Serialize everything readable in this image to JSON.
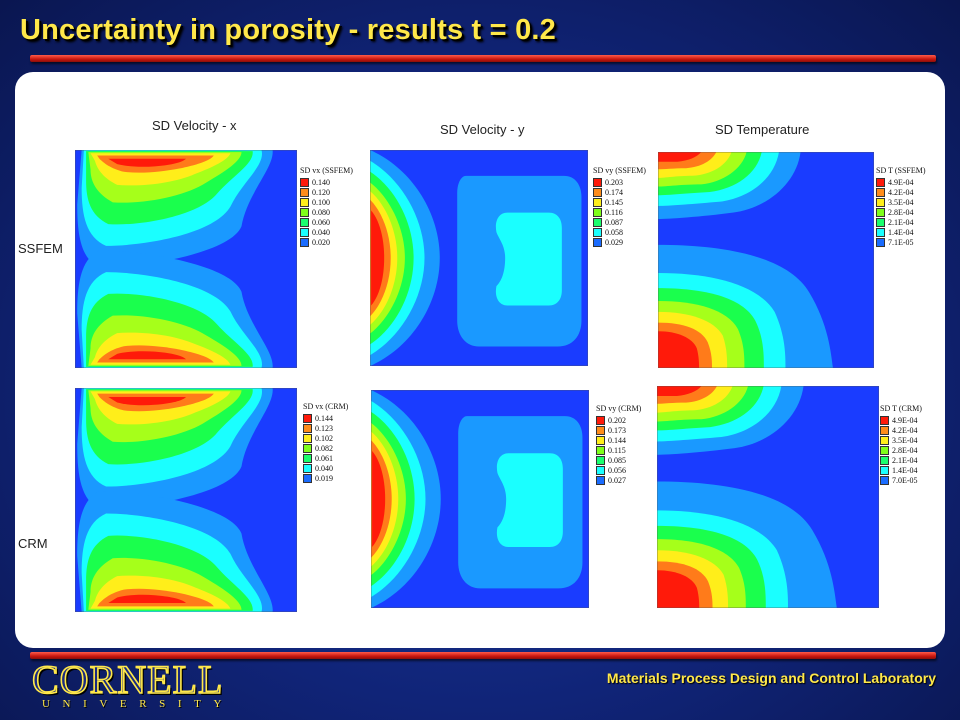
{
  "slide": {
    "title": "Uncertainty in porosity - results t = 0.2",
    "footer": "Materials Process Design and Control Laboratory",
    "logo": {
      "word": "CORNELL",
      "sub": "UNIVERSITY"
    }
  },
  "columns": [
    "SD Velocity - x",
    "SD Velocity - y",
    "SD Temperature"
  ],
  "rows": [
    "SSFEM",
    "CRM"
  ],
  "colors": {
    "background": "#1d3a9c",
    "title": "#ffe84a",
    "rule": "#c8160e",
    "contour_scale": [
      "#ff1a0a",
      "#ff7b1a",
      "#ffee1a",
      "#a6ff1a",
      "#1aff4d",
      "#1affff",
      "#1a99ff",
      "#1a3cff"
    ]
  },
  "legends": {
    "ssfem_vx": {
      "title": "SD vx (SSFEM)",
      "values": [
        "0.140",
        "0.120",
        "0.100",
        "0.080",
        "0.060",
        "0.040",
        "0.020"
      ]
    },
    "ssfem_vy": {
      "title": "SD vy (SSFEM)",
      "values": [
        "0.203",
        "0.174",
        "0.145",
        "0.116",
        "0.087",
        "0.058",
        "0.029"
      ]
    },
    "ssfem_t": {
      "title": "SD T (SSFEM)",
      "values": [
        "4.9E-04",
        "4.2E-04",
        "3.5E-04",
        "2.8E-04",
        "2.1E-04",
        "1.4E-04",
        "7.1E-05"
      ]
    },
    "crm_vx": {
      "title": "SD vx (CRM)",
      "values": [
        "0.144",
        "0.123",
        "0.102",
        "0.082",
        "0.061",
        "0.040",
        "0.019"
      ]
    },
    "crm_vy": {
      "title": "SD vy (CRM)",
      "values": [
        "0.202",
        "0.173",
        "0.144",
        "0.115",
        "0.085",
        "0.056",
        "0.027"
      ]
    },
    "crm_t": {
      "title": "SD T (CRM)",
      "values": [
        "4.9E-04",
        "4.2E-04",
        "3.5E-04",
        "2.8E-04",
        "2.1E-04",
        "1.4E-04",
        "7.0E-05"
      ]
    }
  }
}
